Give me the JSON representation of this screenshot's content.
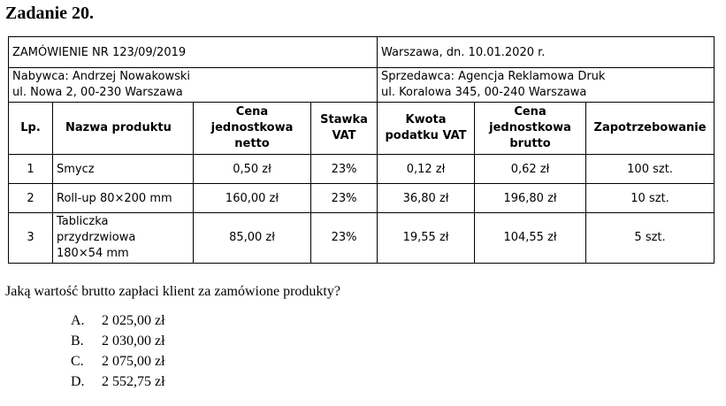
{
  "title": "Zadanie 20.",
  "order": {
    "number": "ZAMÓWIENIE NR 123/09/2019",
    "place_date": "Warszawa, dn. 10.01.2020 r.",
    "buyer_line1": "Nabywca: Andrzej Nowakowski",
    "buyer_line2": "ul. Nowa 2, 00-230 Warszawa",
    "seller_line1": "Sprzedawca: Agencja Reklamowa Druk",
    "seller_line2": "ul. Koralowa 345, 00-240 Warszawa"
  },
  "columns": {
    "lp": "Lp.",
    "name": "Nazwa produktu",
    "net_l1": "Cena",
    "net_l2": "jednostkowa",
    "net_l3": "netto",
    "vat_l1": "Stawka",
    "vat_l2": "VAT",
    "tax_l1": "Kwota",
    "tax_l2": "podatku VAT",
    "gross_l1": "Cena",
    "gross_l2": "jednostkowa",
    "gross_l3": "brutto",
    "qty": "Zapotrzebowanie"
  },
  "rows": [
    {
      "lp": "1",
      "name_l1": "Smycz",
      "net": "0,50 zł",
      "vat": "23%",
      "tax": "0,12 zł",
      "gross": "0,62 zł",
      "qty": "100 szt."
    },
    {
      "lp": "2",
      "name_l1": "Roll-up 80×200 mm",
      "net": "160,00 zł",
      "vat": "23%",
      "tax": "36,80 zł",
      "gross": "196,80 zł",
      "qty": "10 szt."
    },
    {
      "lp": "3",
      "name_l1": "Tabliczka",
      "name_l2": "przydrzwiowa",
      "name_l3": "180×54 mm",
      "net": "85,00 zł",
      "vat": "23%",
      "tax": "19,55 zł",
      "gross": "104,55 zł",
      "qty": "5 szt."
    }
  ],
  "question": "Jaką wartość brutto zapłaci klient za zamówione produkty?",
  "answers": [
    {
      "letter": "A.",
      "text": "2 025,00 zł"
    },
    {
      "letter": "B.",
      "text": "2 030,00 zł"
    },
    {
      "letter": "C.",
      "text": "2 075,00 zł"
    },
    {
      "letter": "D.",
      "text": "2 552,75 zł"
    }
  ]
}
